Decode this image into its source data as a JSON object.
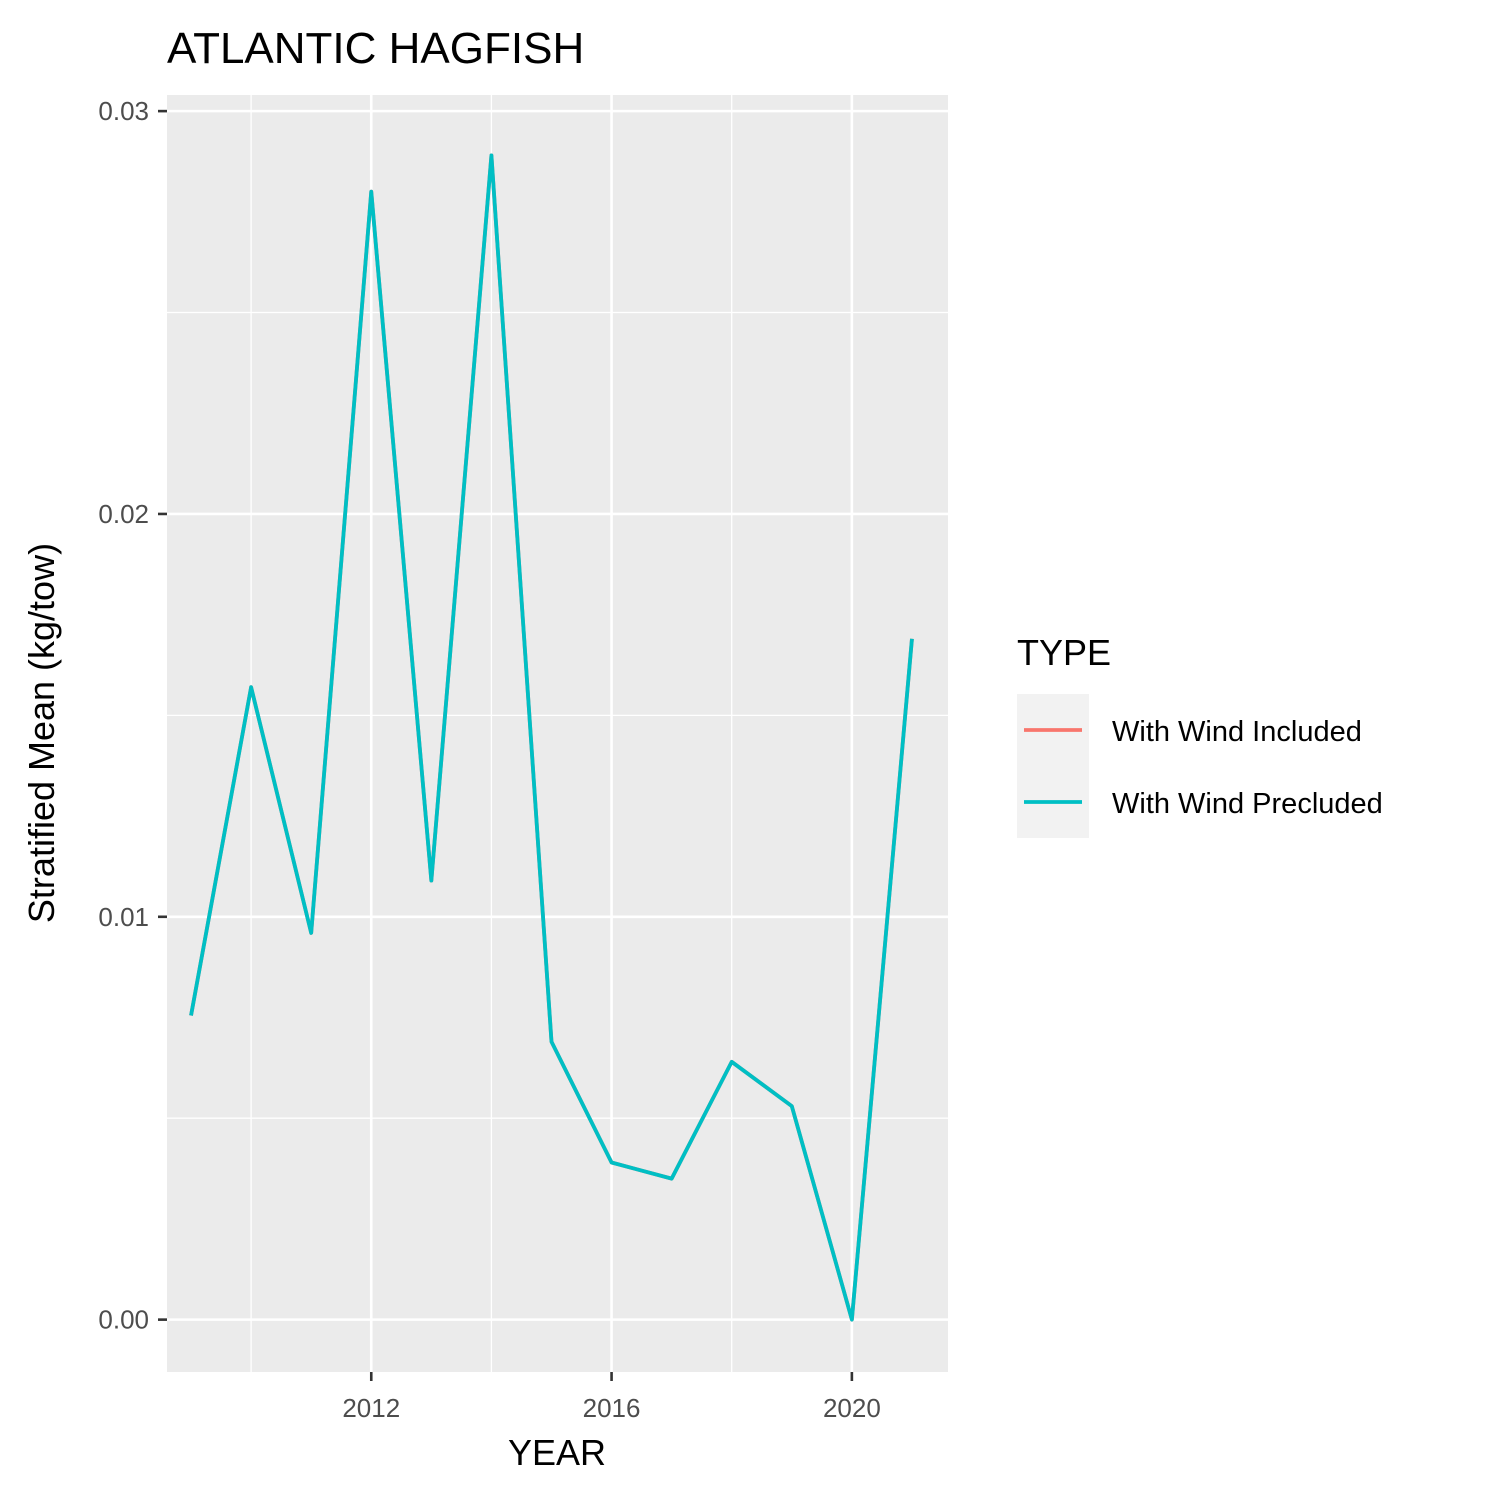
{
  "chart_data": {
    "type": "line",
    "title": "ATLANTIC HAGFISH",
    "xlabel": "YEAR",
    "ylabel": "Stratified Mean (kg/tow)",
    "x_ticks": [
      2012,
      2016,
      2020
    ],
    "y_ticks": [
      0.0,
      0.01,
      0.02,
      0.03
    ],
    "y_tick_labels": [
      "0.00",
      "0.01",
      "0.02",
      "0.03"
    ],
    "xlim": [
      2008.6,
      2021.6
    ],
    "ylim": [
      -0.0013,
      0.0304
    ],
    "grid": true,
    "legend": {
      "title": "TYPE",
      "position": "right"
    },
    "x": [
      2009,
      2010,
      2011,
      2012,
      2013,
      2014,
      2015,
      2016,
      2017,
      2018,
      2019,
      2020,
      2021
    ],
    "series": [
      {
        "name": "With Wind Included",
        "color": "#F8766D",
        "values": [
          0.00755,
          0.0157,
          0.0096,
          0.028,
          0.0109,
          0.0289,
          0.0069,
          0.0039,
          0.0035,
          0.0064,
          0.0053,
          0.0,
          0.0169
        ]
      },
      {
        "name": "With Wind Precluded",
        "color": "#00BFC4",
        "values": [
          0.00755,
          0.0157,
          0.0096,
          0.028,
          0.0109,
          0.0289,
          0.0069,
          0.0039,
          0.0035,
          0.0064,
          0.0053,
          0.0,
          0.0169
        ]
      }
    ]
  }
}
